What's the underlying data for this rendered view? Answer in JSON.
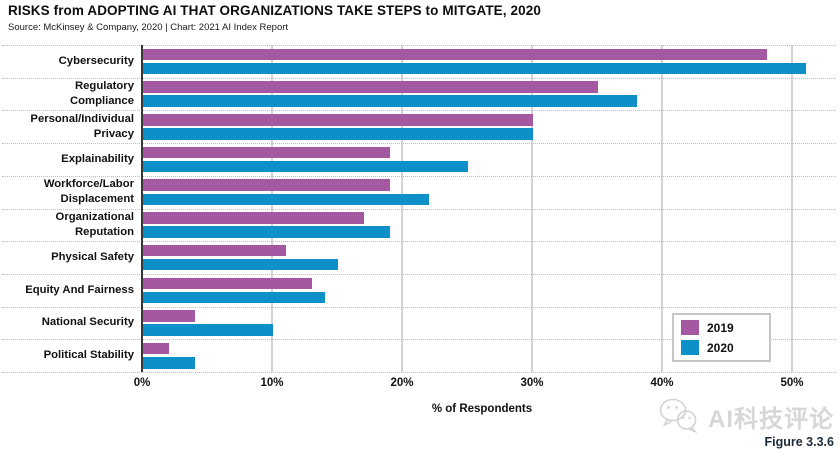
{
  "header": {
    "title": "RISKS from ADOPTING AI THAT ORGANIZATIONS TAKE STEPS to MITGATE, 2020",
    "source_line": "Source: McKinsey & Company, 2020 | Chart: 2021 AI Index Report"
  },
  "chart_data": {
    "type": "bar",
    "orientation": "horizontal",
    "title": "RISKS from ADOPTING AI THAT ORGANIZATIONS TAKE STEPS to MITGATE, 2020",
    "xlabel": "% of Respondents",
    "xlim": [
      0,
      50
    ],
    "x_ticks": [
      {
        "label": "0%",
        "value": 0
      },
      {
        "label": "10%",
        "value": 10
      },
      {
        "label": "20%",
        "value": 20
      },
      {
        "label": "30%",
        "value": 30
      },
      {
        "label": "40%",
        "value": 40
      },
      {
        "label": "50%",
        "value": 50
      }
    ],
    "grid": "vertical solid gridlines, horizontal dotted row separators",
    "legend_position": "inside bottom-right",
    "categories": [
      "Cybersecurity",
      "Regulatory Compliance",
      "Personal/Individual Privacy",
      "Explainability",
      "Workforce/Labor Displacement",
      "Organizational Reputation",
      "Physical Safety",
      "Equity And Fairness",
      "National Security",
      "Political Stability"
    ],
    "category_label_lines": [
      [
        "Cybersecurity"
      ],
      [
        "Regulatory",
        "Compliance"
      ],
      [
        "Personal/Individual",
        "Privacy"
      ],
      [
        "Explainability"
      ],
      [
        "Workforce/Labor",
        "Displacement"
      ],
      [
        "Organizational",
        "Reputation"
      ],
      [
        "Physical Safety"
      ],
      [
        "Equity And Fairness"
      ],
      [
        "National Security"
      ],
      [
        "Political Stability"
      ]
    ],
    "series": [
      {
        "name": "2019",
        "color": "#a558a2",
        "values": [
          48,
          35,
          30,
          19,
          19,
          17,
          11,
          13,
          4,
          2
        ]
      },
      {
        "name": "2020",
        "color": "#0d8fc8",
        "values": [
          51,
          38,
          30,
          25,
          22,
          19,
          15,
          14,
          10,
          4
        ]
      }
    ]
  },
  "legend": {
    "items": [
      {
        "label": "2019",
        "color": "#a558a2"
      },
      {
        "label": "2020",
        "color": "#0d8fc8"
      }
    ]
  },
  "footer": {
    "watermark_icon": "wechat-logo",
    "watermark_text": "AI科技评论",
    "figure_label": "Figure 3.3.6"
  }
}
